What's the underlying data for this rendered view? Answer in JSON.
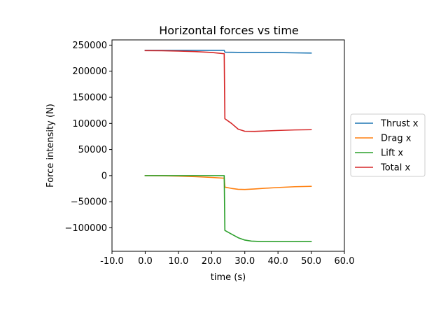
{
  "chart_data": {
    "type": "line",
    "title": "Horizontal forces vs time",
    "xlabel": "time (s)",
    "ylabel": "Force intensity (N)",
    "xlim": [
      -10,
      60
    ],
    "ylim": [
      -145000,
      260000
    ],
    "x_ticks": [
      -10,
      0,
      10,
      20,
      30,
      40,
      50,
      60
    ],
    "x_tick_labels": [
      "-10.0",
      "0.0",
      "10.0",
      "20.0",
      "30.0",
      "40.0",
      "50.0",
      "60.0"
    ],
    "y_ticks": [
      -100000,
      -50000,
      0,
      50000,
      100000,
      150000,
      200000,
      250000
    ],
    "y_tick_labels": [
      "−100000",
      "−50000",
      "0",
      "50000",
      "100000",
      "150000",
      "200000",
      "250000"
    ],
    "grid": false,
    "legend_position": "right, outside plot",
    "series": [
      {
        "name": "Thrust x",
        "color": "#1f77b4",
        "points": [
          [
            0,
            240000
          ],
          [
            5,
            240000
          ],
          [
            10,
            240000
          ],
          [
            15,
            240000
          ],
          [
            20,
            240000
          ],
          [
            23.8,
            240000
          ],
          [
            24,
            236500
          ],
          [
            30,
            236000
          ],
          [
            35,
            236000
          ],
          [
            40,
            235800
          ],
          [
            45,
            235200
          ],
          [
            50,
            234800
          ]
        ]
      },
      {
        "name": "Drag x",
        "color": "#ff7f0e",
        "points": [
          [
            0,
            0
          ],
          [
            5,
            -300
          ],
          [
            10,
            -1000
          ],
          [
            15,
            -2000
          ],
          [
            20,
            -3500
          ],
          [
            23.8,
            -5000
          ],
          [
            24,
            -22000
          ],
          [
            26,
            -24500
          ],
          [
            28,
            -26200
          ],
          [
            30,
            -26500
          ],
          [
            33,
            -25500
          ],
          [
            36,
            -24200
          ],
          [
            40,
            -22800
          ],
          [
            45,
            -21300
          ],
          [
            50,
            -20500
          ]
        ]
      },
      {
        "name": "Lift x",
        "color": "#2ca02c",
        "points": [
          [
            0,
            0
          ],
          [
            5,
            0
          ],
          [
            10,
            0
          ],
          [
            15,
            0
          ],
          [
            20,
            0
          ],
          [
            23.8,
            0
          ],
          [
            24,
            -105000
          ],
          [
            26,
            -112000
          ],
          [
            28,
            -119000
          ],
          [
            30,
            -123500
          ],
          [
            32,
            -125500
          ],
          [
            35,
            -126300
          ],
          [
            40,
            -126500
          ],
          [
            45,
            -126500
          ],
          [
            50,
            -126300
          ]
        ]
      },
      {
        "name": "Total x",
        "color": "#d62728",
        "points": [
          [
            0,
            239500
          ],
          [
            5,
            239300
          ],
          [
            10,
            238600
          ],
          [
            15,
            237600
          ],
          [
            20,
            236000
          ],
          [
            23.8,
            233500
          ],
          [
            24,
            109000
          ],
          [
            26,
            100000
          ],
          [
            28,
            89000
          ],
          [
            30,
            85000
          ],
          [
            33,
            84800
          ],
          [
            36,
            85500
          ],
          [
            40,
            86500
          ],
          [
            45,
            87500
          ],
          [
            50,
            88000
          ]
        ]
      }
    ]
  }
}
